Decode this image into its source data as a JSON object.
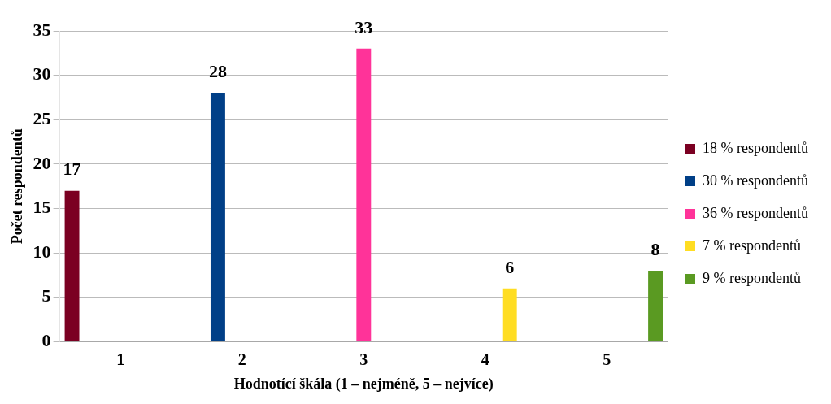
{
  "chart_data": {
    "type": "bar",
    "xlabel": "Hodnotící škála (1 – nejméně, 5 – nejvíce)",
    "ylabel": "Počet respondentů",
    "categories": [
      "1",
      "2",
      "3",
      "4",
      "5"
    ],
    "series": [
      {
        "name": "18 % respondentů",
        "color": "#7b0022",
        "values": [
          17,
          null,
          null,
          null,
          null
        ]
      },
      {
        "name": "30 % respondentů",
        "color": "#003f87",
        "values": [
          null,
          28,
          null,
          null,
          null
        ]
      },
      {
        "name": "36 % respondentů",
        "color": "#ff3399",
        "values": [
          null,
          null,
          33,
          null,
          null
        ]
      },
      {
        "name": "7 % respondentů",
        "color": "#ffdd22",
        "values": [
          null,
          null,
          null,
          6,
          null
        ]
      },
      {
        "name": "9 % respondentů",
        "color": "#5a9a22",
        "values": [
          null,
          null,
          null,
          null,
          8
        ]
      }
    ],
    "ylim": [
      0,
      35
    ],
    "yticks": [
      0,
      5,
      10,
      15,
      20,
      25,
      30,
      35
    ],
    "grid": "y",
    "legend": "right",
    "data_labels": true
  }
}
